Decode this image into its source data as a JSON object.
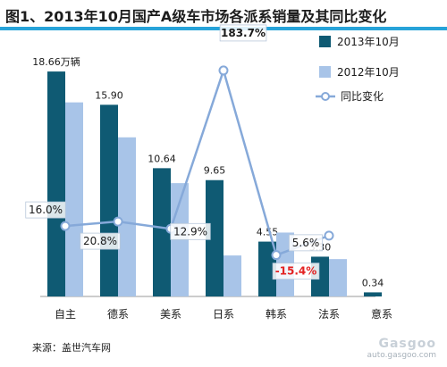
{
  "title": "图1、2013年10月国产A级车市场各派系销量及其同比变化",
  "source": "来源：盖世汽车网",
  "watermark": {
    "logo_text": "Gasgoo",
    "url": "auto.gasgoo.com"
  },
  "colors": {
    "series1": "#0f5a73",
    "series2": "#a8c4e8",
    "line": "#86a9d9",
    "negative_label": "#e32222",
    "axis": "#999999",
    "title_rule": "#27a3d9"
  },
  "chart_data": {
    "type": "bar",
    "title": "图1、2013年10月国产A级车市场各派系销量及其同比变化",
    "categories": [
      "自主",
      "德系",
      "美系",
      "日系",
      "韩系",
      "法系",
      "意系"
    ],
    "series": [
      {
        "name": "2013年10月",
        "values": [
          18.66,
          15.9,
          10.64,
          9.65,
          4.55,
          3.3,
          0.34
        ],
        "value_labels": [
          "18.66万辆",
          "15.90",
          "10.64",
          "9.65",
          "4.55",
          "3.30",
          "0.34"
        ]
      },
      {
        "name": "2012年10月",
        "values": [
          16.1,
          13.2,
          9.4,
          3.4,
          5.3,
          3.1,
          null
        ]
      }
    ],
    "line": {
      "name": "同比变化",
      "unit": "%",
      "axis": "secondary",
      "values": [
        16.0,
        20.8,
        12.9,
        183.7,
        -15.4,
        5.6,
        null
      ],
      "labels": [
        "16.0%",
        "20.8%",
        "12.9%",
        "183.7%",
        "-15.4%",
        "5.6%",
        ""
      ]
    },
    "ylim": [
      0,
      20
    ],
    "y2lim": [
      -60,
      200
    ],
    "xlabel": "",
    "ylabel": "",
    "grid": false,
    "legend": "top-right"
  }
}
